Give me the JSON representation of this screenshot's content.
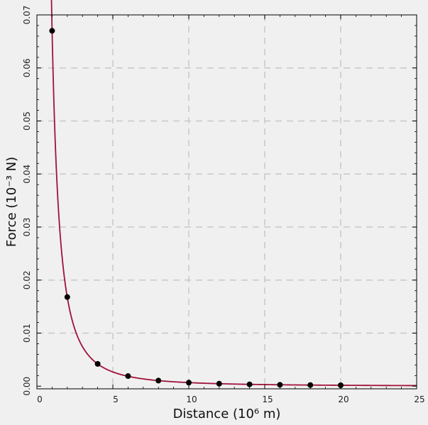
{
  "chart_data": {
    "type": "line",
    "title": "",
    "xlabel": "Distance   (10⁶ m)",
    "ylabel": "Force   (10⁻³ N)",
    "xlim": [
      0,
      25
    ],
    "ylim": [
      -0.0005,
      0.07
    ],
    "xticks": [
      0,
      5,
      10,
      15,
      20,
      25
    ],
    "yticks": [
      0.0,
      0.01,
      0.02,
      0.03,
      0.04,
      0.05,
      0.06,
      0.07
    ],
    "ytick_labels": [
      "0.00",
      "0.01",
      "0.02",
      "0.03",
      "0.04",
      "0.05",
      "0.06",
      "0.07"
    ],
    "grid": true,
    "model": "F = k / r²",
    "k": 0.067,
    "curve_range": [
      0.85,
      25
    ],
    "points": {
      "x": [
        1,
        2,
        4,
        6,
        8,
        10,
        12,
        14,
        16,
        18,
        20
      ],
      "y": [
        0.067,
        0.0168,
        0.0042,
        0.0019,
        0.00105,
        0.00067,
        0.00047,
        0.00034,
        0.00026,
        0.00021,
        0.00017
      ]
    },
    "colors": {
      "curve": "#a0123a",
      "points": "#000000",
      "grid": "#c8c8c8",
      "background": "#f0f0f0"
    }
  }
}
